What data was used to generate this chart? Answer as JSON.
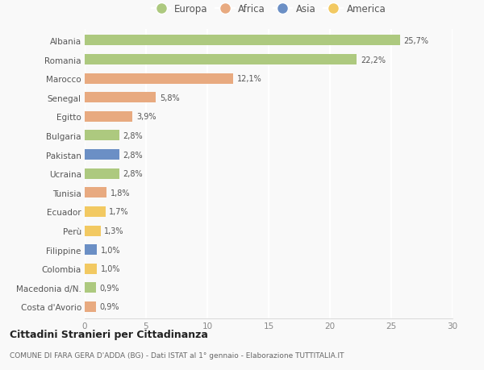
{
  "countries": [
    "Albania",
    "Romania",
    "Marocco",
    "Senegal",
    "Egitto",
    "Bulgaria",
    "Pakistan",
    "Ucraina",
    "Tunisia",
    "Ecuador",
    "Perù",
    "Filippine",
    "Colombia",
    "Macedonia d/N.",
    "Costa d'Avorio"
  ],
  "values": [
    25.7,
    22.2,
    12.1,
    5.8,
    3.9,
    2.8,
    2.8,
    2.8,
    1.8,
    1.7,
    1.3,
    1.0,
    1.0,
    0.9,
    0.9
  ],
  "labels": [
    "25,7%",
    "22,2%",
    "12,1%",
    "5,8%",
    "3,9%",
    "2,8%",
    "2,8%",
    "2,8%",
    "1,8%",
    "1,7%",
    "1,3%",
    "1,0%",
    "1,0%",
    "0,9%",
    "0,9%"
  ],
  "continent": [
    "Europa",
    "Europa",
    "Africa",
    "Africa",
    "Africa",
    "Europa",
    "Asia",
    "Europa",
    "Africa",
    "America",
    "America",
    "Asia",
    "America",
    "Europa",
    "Africa"
  ],
  "colors": {
    "Europa": "#adc97f",
    "Africa": "#e8aa80",
    "Asia": "#6b8fc5",
    "America": "#f2c962"
  },
  "legend_order": [
    "Europa",
    "Africa",
    "Asia",
    "America"
  ],
  "xlim": [
    0,
    30
  ],
  "xticks": [
    0,
    5,
    10,
    15,
    20,
    25,
    30
  ],
  "title": "Cittadini Stranieri per Cittadinanza",
  "subtitle": "COMUNE DI FARA GERA D'ADDA (BG) - Dati ISTAT al 1° gennaio - Elaborazione TUTTITALIA.IT",
  "background_color": "#f9f9f9",
  "grid_color": "#ffffff",
  "bar_height": 0.55
}
